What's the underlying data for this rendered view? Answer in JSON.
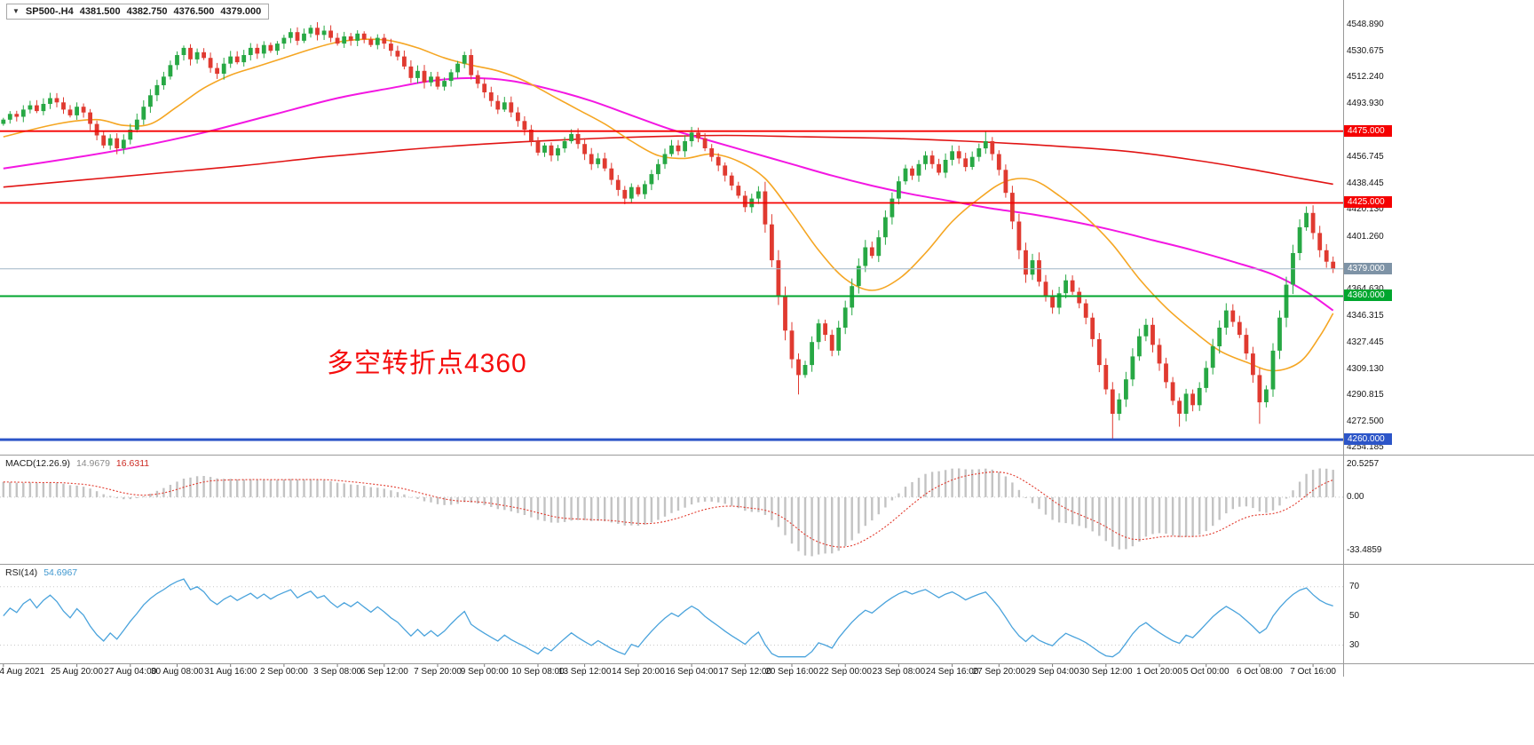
{
  "title_box": {
    "symbol_period": "SP500-.H4",
    "open": "4381.500",
    "high": "4382.750",
    "low": "4376.500",
    "close": "4379.000"
  },
  "annotation": {
    "text": "多空转折点4360",
    "color": "#f50d0d"
  },
  "price_axis": {
    "labels": [
      "4548.890",
      "4530.675",
      "4512.240",
      "4493.930",
      "4456.745",
      "4438.445",
      "4420.130",
      "4401.260",
      "4364.630",
      "4346.315",
      "4327.445",
      "4309.130",
      "4290.815",
      "4272.500",
      "4254.185"
    ],
    "tags": [
      {
        "text": "4475.000",
        "price": 4475.0,
        "bg": "#f50000"
      },
      {
        "text": "4425.000",
        "price": 4425.0,
        "bg": "#f50000"
      },
      {
        "text": "4379.000",
        "price": 4379.0,
        "bg": "#7e93a6"
      },
      {
        "text": "4360.000",
        "price": 4360.0,
        "bg": "#00a62e"
      },
      {
        "text": "4260.000",
        "price": 4260.0,
        "bg": "#2c55c8"
      }
    ]
  },
  "time_axis": {
    "labels": [
      {
        "text": "24 Aug 2021",
        "bar": 0
      },
      {
        "text": "25 Aug 20:00",
        "bar": 11
      },
      {
        "text": "27 Aug 04:00",
        "bar": 19
      },
      {
        "text": "30 Aug 08:00",
        "bar": 26
      },
      {
        "text": "31 Aug 16:00",
        "bar": 34
      },
      {
        "text": "2 Sep 00:00",
        "bar": 42
      },
      {
        "text": "3 Sep 08:00",
        "bar": 50
      },
      {
        "text": "6 Sep 12:00",
        "bar": 57
      },
      {
        "text": "7 Sep 20:00",
        "bar": 65
      },
      {
        "text": "9 Sep 00:00",
        "bar": 72
      },
      {
        "text": "10 Sep 08:00",
        "bar": 80
      },
      {
        "text": "13 Sep 12:00",
        "bar": 87
      },
      {
        "text": "14 Sep 20:00",
        "bar": 95
      },
      {
        "text": "16 Sep 04:00",
        "bar": 103
      },
      {
        "text": "17 Sep 12:00",
        "bar": 111
      },
      {
        "text": "20 Sep 16:00",
        "bar": 118
      },
      {
        "text": "22 Sep 00:00",
        "bar": 126
      },
      {
        "text": "23 Sep 08:00",
        "bar": 134
      },
      {
        "text": "24 Sep 16:00",
        "bar": 142
      },
      {
        "text": "27 Sep 20:00",
        "bar": 149
      },
      {
        "text": "29 Sep 04:00",
        "bar": 157
      },
      {
        "text": "30 Sep 12:00",
        "bar": 165
      },
      {
        "text": "1 Oct 20:00",
        "bar": 173
      },
      {
        "text": "5 Oct 00:00",
        "bar": 180
      },
      {
        "text": "6 Oct 08:00",
        "bar": 188
      },
      {
        "text": "7 Oct 16:00",
        "bar": 196
      }
    ]
  },
  "panels": {
    "macd": {
      "label": "MACD(12.26.9)",
      "value1": "14.9679",
      "value2": "16.6311",
      "axis": [
        "20.5257",
        "0.00",
        "-33.4859"
      ]
    },
    "rsi": {
      "label": "RSI(14)",
      "value": "54.6967",
      "axis": [
        "70",
        "50",
        "30"
      ],
      "levels": [
        70,
        30
      ]
    }
  },
  "chart_data": {
    "type": "candlestick",
    "symbol": "SP500-",
    "timeframe": "H4",
    "current_ohlc": {
      "open": 4381.5,
      "high": 4382.75,
      "low": 4376.5,
      "close": 4379.0
    },
    "price_range": [
      4252,
      4554
    ],
    "colors": {
      "up": "#27a844",
      "down": "#e03a30",
      "macd_hist": "#c3c3c3",
      "macd_signal": "#e23b2e",
      "rsi": "#4aa3dc"
    },
    "closes": [
      4483,
      4487,
      4485,
      4490,
      4493,
      4489,
      4494,
      4498,
      4495,
      4490,
      4486,
      4492,
      4488,
      4480,
      4472,
      4465,
      4470,
      4463,
      4469,
      4476,
      4483,
      4492,
      4500,
      4507,
      4513,
      4521,
      4528,
      4533,
      4525,
      4530,
      4526,
      4519,
      4515,
      4522,
      4527,
      4523,
      4528,
      4533,
      4529,
      4535,
      4531,
      4536,
      4540,
      4544,
      4538,
      4543,
      4547,
      4542,
      4545,
      4540,
      4536,
      4541,
      4538,
      4543,
      4539,
      4535,
      4540,
      4536,
      4531,
      4527,
      4520,
      4512,
      4517,
      4509,
      4513,
      4506,
      4510,
      4516,
      4522,
      4528,
      4514,
      4508,
      4502,
      4496,
      4490,
      4495,
      4488,
      4482,
      4476,
      4468,
      4460,
      4465,
      4458,
      4463,
      4468,
      4473,
      4466,
      4459,
      4452,
      4456,
      4449,
      4441,
      4434,
      4428,
      4436,
      4431,
      4438,
      4445,
      4452,
      4459,
      4465,
      4461,
      4468,
      4474,
      4470,
      4463,
      4457,
      4451,
      4444,
      4437,
      4430,
      4422,
      4428,
      4433,
      4410,
      4385,
      4360,
      4336,
      4316,
      4305,
      4312,
      4328,
      4341,
      4333,
      4322,
      4338,
      4352,
      4367,
      4381,
      4394,
      4388,
      4401,
      4415,
      4428,
      4440,
      4449,
      4444,
      4452,
      4458,
      4452,
      4446,
      4455,
      4461,
      4456,
      4450,
      4457,
      4463,
      4468,
      4459,
      4448,
      4432,
      4412,
      4392,
      4375,
      4385,
      4370,
      4360,
      4352,
      4362,
      4371,
      4363,
      4355,
      4345,
      4330,
      4312,
      4295,
      4278,
      4288,
      4302,
      4318,
      4332,
      4340,
      4326,
      4313,
      4300,
      4287,
      4278,
      4292,
      4284,
      4296,
      4310,
      4325,
      4338,
      4350,
      4342,
      4333,
      4320,
      4305,
      4286,
      4295,
      4322,
      4345,
      4368,
      4390,
      4408,
      4418,
      4404,
      4392,
      4384,
      4379
    ],
    "wick_overrides": {
      "46": {
        "high": 4549.0
      },
      "119": {
        "low": 4291.5
      },
      "147": {
        "high": 4474.5
      },
      "166": {
        "low": 4260.5
      },
      "176": {
        "low": 4269.0
      },
      "188": {
        "low": 4271.0
      },
      "195": {
        "high": 4422.5
      }
    },
    "hlines": [
      {
        "name": "resistance-4475",
        "price": 4475.0,
        "color": "#f50000",
        "width": 1.8
      },
      {
        "name": "resistance-4425",
        "price": 4425.0,
        "color": "#f50000",
        "width": 1.8
      },
      {
        "name": "pivot-4360",
        "price": 4360.0,
        "color": "#00a62e",
        "width": 2
      },
      {
        "name": "support-4260",
        "price": 4260.0,
        "color": "#2c55c8",
        "width": 3
      },
      {
        "name": "current-price-4379",
        "price": 4379.0,
        "color": "#9fb6c6",
        "width": 1
      }
    ],
    "moving_averages": [
      {
        "name": "slowest-red",
        "color": "#e11414",
        "width": 1.6,
        "points": [
          [
            0,
            4436
          ],
          [
            12,
            4441
          ],
          [
            24,
            4446
          ],
          [
            36,
            4451
          ],
          [
            48,
            4457
          ],
          [
            60,
            4462
          ],
          [
            72,
            4466
          ],
          [
            84,
            4469
          ],
          [
            96,
            4471
          ],
          [
            108,
            4472
          ],
          [
            120,
            4471
          ],
          [
            132,
            4470
          ],
          [
            144,
            4468
          ],
          [
            156,
            4465
          ],
          [
            168,
            4461
          ],
          [
            178,
            4455
          ],
          [
            186,
            4449
          ],
          [
            193,
            4443
          ],
          [
            199,
            4438
          ]
        ]
      },
      {
        "name": "slow-magenta",
        "color": "#f317e2",
        "width": 2,
        "points": [
          [
            0,
            4449
          ],
          [
            10,
            4456
          ],
          [
            20,
            4464
          ],
          [
            30,
            4474
          ],
          [
            40,
            4486
          ],
          [
            50,
            4498
          ],
          [
            58,
            4505
          ],
          [
            64,
            4510
          ],
          [
            70,
            4512
          ],
          [
            76,
            4510
          ],
          [
            82,
            4504
          ],
          [
            88,
            4496
          ],
          [
            94,
            4486
          ],
          [
            100,
            4476
          ],
          [
            106,
            4468
          ],
          [
            112,
            4460
          ],
          [
            118,
            4452
          ],
          [
            124,
            4444
          ],
          [
            130,
            4437
          ],
          [
            136,
            4431
          ],
          [
            142,
            4426
          ],
          [
            148,
            4421
          ],
          [
            154,
            4417
          ],
          [
            160,
            4412
          ],
          [
            166,
            4406
          ],
          [
            172,
            4399
          ],
          [
            178,
            4392
          ],
          [
            184,
            4384
          ],
          [
            190,
            4375
          ],
          [
            195,
            4363
          ],
          [
            199,
            4350
          ]
        ]
      },
      {
        "name": "fast-orange",
        "color": "#f5a623",
        "width": 1.6,
        "points": [
          [
            0,
            4471
          ],
          [
            8,
            4480
          ],
          [
            14,
            4483
          ],
          [
            18,
            4479
          ],
          [
            22,
            4480
          ],
          [
            26,
            4492
          ],
          [
            30,
            4505
          ],
          [
            34,
            4514
          ],
          [
            38,
            4520
          ],
          [
            42,
            4526
          ],
          [
            46,
            4532
          ],
          [
            50,
            4537
          ],
          [
            54,
            4539
          ],
          [
            58,
            4538
          ],
          [
            62,
            4533
          ],
          [
            66,
            4526
          ],
          [
            70,
            4521
          ],
          [
            74,
            4517
          ],
          [
            78,
            4510
          ],
          [
            82,
            4500
          ],
          [
            86,
            4490
          ],
          [
            90,
            4480
          ],
          [
            94,
            4468
          ],
          [
            98,
            4458
          ],
          [
            102,
            4456
          ],
          [
            106,
            4459
          ],
          [
            110,
            4454
          ],
          [
            114,
            4442
          ],
          [
            118,
            4418
          ],
          [
            122,
            4392
          ],
          [
            126,
            4372
          ],
          [
            130,
            4364
          ],
          [
            134,
            4372
          ],
          [
            138,
            4390
          ],
          [
            142,
            4412
          ],
          [
            146,
            4428
          ],
          [
            150,
            4440
          ],
          [
            154,
            4441
          ],
          [
            158,
            4430
          ],
          [
            162,
            4415
          ],
          [
            166,
            4396
          ],
          [
            170,
            4372
          ],
          [
            174,
            4352
          ],
          [
            178,
            4336
          ],
          [
            182,
            4322
          ],
          [
            186,
            4314
          ],
          [
            190,
            4308
          ],
          [
            194,
            4314
          ],
          [
            197,
            4332
          ],
          [
            199,
            4348
          ]
        ]
      }
    ],
    "macd": {
      "fast": 12,
      "slow": 26,
      "signal": 9,
      "current_main": 14.9679,
      "current_signal": 16.6311
    },
    "rsi": {
      "period": 14,
      "current": 54.6967,
      "display_range": [
        20,
        82
      ]
    }
  }
}
